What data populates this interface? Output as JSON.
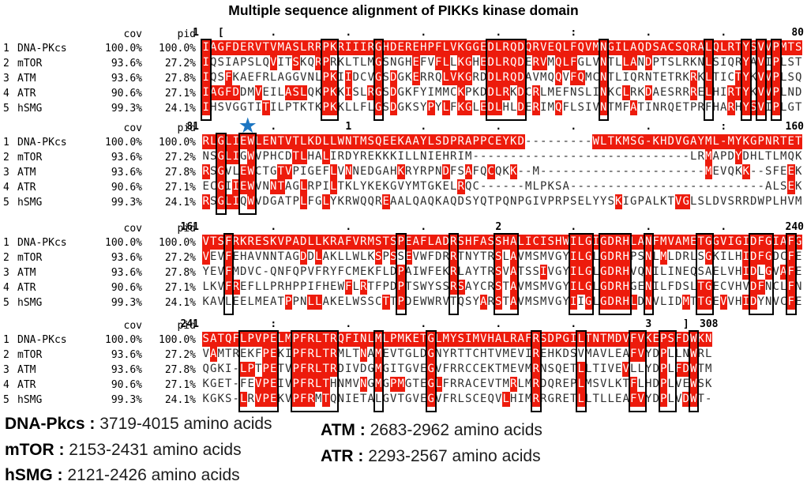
{
  "title": "Multiple sequence alignment of PIKKs kinase domain",
  "colors": {
    "highlight": "#ed1b0c",
    "highlight_text": "#ffffff",
    "residue_text": "#2f2f2f",
    "box_border": "#000000",
    "star": "#1d76c2",
    "ruler_text": "#000000"
  },
  "star": {
    "symbol": "★"
  },
  "column_headers": {
    "cov": "cov",
    "pid": "pid"
  },
  "sequence_labels": [
    {
      "num": "1",
      "name": "DNA-PKcs",
      "cov": "100.0%",
      "pid": "100.0%"
    },
    {
      "num": "2",
      "name": "mTOR",
      "cov": "93.6%",
      "pid": "27.2%"
    },
    {
      "num": "3",
      "name": "ATM",
      "cov": "93.6%",
      "pid": "27.8%"
    },
    {
      "num": "4",
      "name": "ATR",
      "cov": "90.6%",
      "pid": "27.1%"
    },
    {
      "num": "5",
      "name": "hSMG",
      "cov": "99.3%",
      "pid": "24.1%"
    }
  ],
  "blocks": [
    {
      "start": "1",
      "end": "80",
      "star_col": null,
      "ticks": {
        "3": "[",
        "10": ".",
        "20": ".",
        "30": ".",
        "40": ".",
        "50": ":",
        "60": ".",
        "70": "."
      },
      "rows": [
        "IAGFDERVTVMASLRRPKRIIIRGHDEREHPFLVKGGEDLRQDQRVEQLFQVMNGILAQDSACSQRALQLRTYSVVPMTS",
        "IQSIAPSLQVITSKQRPRKLTLMGSNGHEFVFLLKGHEDLRQDERVMQLFGLVNTLLANDPTSLRKNLSIQRYAVIPLST",
        "IQSFKAEFRLAGGVNLPKIIDCVGSDGKERRQLVKGRDDLRQDAVMQQVFQMCNTLIQRNTETRKRKLTICTYKVVPLSQ",
        "IAGFDDMVEILASLQKPKKISLRGSDGKFYIMMCKPKDDLRKDCRLMEFNSLINKCLRKDAESRRRELHIRTYKVVPLND",
        "IHSVGGTITILPTKTKPKKLLFLGSDGKSYPYLFKGLEDLHLDERIMQFLSIVNTMFATINRQETPRFHARHYSVIPLGT"
      ],
      "boxes": [
        [
          1,
          1
        ],
        [
          17,
          18
        ],
        [
          24,
          24
        ],
        [
          39,
          43
        ],
        [
          54,
          54
        ],
        [
          68,
          68
        ],
        [
          73,
          73
        ],
        [
          75,
          75
        ],
        [
          77,
          77
        ]
      ]
    },
    {
      "start": "81",
      "end": "160",
      "star_col": 6.4,
      "ticks": {
        "10": ".",
        "20": "1",
        "30": ".",
        "40": ".",
        "50": ".",
        "60": ".",
        "70": ":"
      },
      "rows": [
        "RLGLIEWLENTVTLKDLLWNTMSQEEKAAYLSDPRAPPCEYKD---------WLTKMSG-KHDVGAYML-MYKGPNRTET",
        "NSGLIGWVPHCDTLHALIRDYREKKKILLNIEHRIM-----------------------------LRMAPDYDHLTLMQK",
        "RSGVLEWCTGTVPIGEFLVNNEDGAHKRYRPNDFSAFQCQKK--M----------------------MEVQKK--SFEEK",
        "ECGIIEWVNNTAGLRPILTKLYKEKGVYMTGKELRQC------MLPKSA--------------------------ALSEK",
        "RSGLIQWVDGATPLFGLYKRWQQREAALQAQKAQDSYQTPQNPGIVPRPSELYYSKIGPALKTVGLSLDVSRRDWPLHVM"
      ],
      "boxes": [
        [
          3,
          3
        ],
        [
          6,
          7
        ]
      ]
    },
    {
      "start": "161",
      "end": "240",
      "star_col": null,
      "ticks": {
        "10": ".",
        "20": ".",
        "30": ".",
        "40": "2",
        "50": ".",
        "60": ".",
        "70": "."
      },
      "rows": [
        "VTSFRKRESKVPADLLKRAFVRMSTSPEAFLADRSHFASSHALICISHWILGIGDRHLANFMVAMETGGVIGIDFGIAFG",
        "VEVFEHAVNNTAGDDLAKLLWLKSPSSEVWFDRRTNYTRSLAVMSMVGYILGLGDRHPSNLMLDRLSGKILHIDFGDCFE",
        "YEVFMDVC-QNFQPVFRYFCMEKFLDPAIWFEKRLAYTRSVATSSIVGYILGLGDRHVQNILINEQSAELVHIDLGVAFE",
        "LKVFREFLLPRHPPIFHEWFLRTFPDPTSWYSSRSAYCRSTAVMSMVGYILGLGDRHGENILFDSLTGECVHVDFNCLFN",
        "KAVLEELMEATPPNLLAKELWSSCTTPDEWWRVTQSYARSTAVMSMVGYIIGLGDRHLDNVLIDMTTGEVVHIDYNVCFE"
      ],
      "boxes": [
        [
          4,
          4
        ],
        [
          27,
          27
        ],
        [
          34,
          34
        ],
        [
          40,
          42
        ],
        [
          50,
          52
        ],
        [
          54,
          57
        ],
        [
          60,
          60
        ],
        [
          67,
          68
        ],
        [
          74,
          76
        ],
        [
          79,
          79
        ]
      ]
    },
    {
      "start": "241",
      "end": "308",
      "star_col": null,
      "ticks": {
        "10": ":",
        "20": ".",
        "30": ".",
        "40": ".",
        "50": ".",
        "60": "3",
        "65": "]"
      },
      "rows": [
        "SATQFLPVPELMPFRLTRQFINLMLPMKETGLMYSIMVHALRAFRSDPGILTNTMDVFVKEPSFDWKN",
        "VAMTREKFPEKIPFRLTRMLTNAMEVTGLDGNYRTTCHTVMEVIREHKDSVMAVLEAFVYDPLLNWRL",
        "QGKI-LPTPETVPFRLTRDIVDGMGITGVEGVFRRCCEKTMEVMRNSQETLLTIVEVLLYDPLFDWTM",
        "KGET-FEVPEIVPFRLTHNMVNGMGPMGTEGLFRRACEVTMRLMRDQREPLMSVLKTFLHDPLVEWSK",
        "KGKS-LRVPEKVPFRMTQNIETALGVTGVEGVFRLSCEQVLHIMRRGRETLLTLLEAFVYDPLVDWT-"
      ],
      "boxes": [
        [
          6,
          10
        ],
        [
          13,
          18
        ],
        [
          24,
          24
        ],
        [
          31,
          31
        ],
        [
          45,
          45
        ],
        [
          51,
          51
        ],
        [
          58,
          59
        ],
        [
          62,
          63
        ],
        [
          66,
          66
        ]
      ]
    }
  ],
  "legend": [
    {
      "label": "DNA-Pkcs :",
      "value": "3719-4015 amino acids"
    },
    {
      "label": "mTOR :",
      "value": "2153-2431 amino acids"
    },
    {
      "label": "hSMG :",
      "value": "2121-2426 amino acids"
    },
    {
      "label": "ATM :",
      "value": "2683-2962 amino acids"
    },
    {
      "label": "ATR :",
      "value": "2293-2567 amino acids"
    }
  ]
}
